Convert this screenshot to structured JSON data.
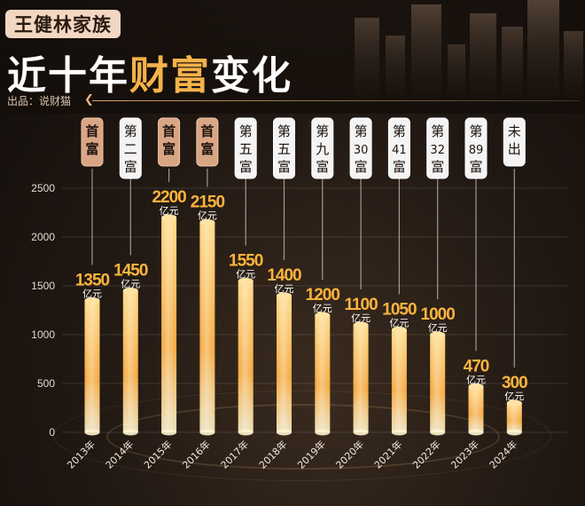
{
  "header": {
    "subtitle": "王健林家族",
    "title_part1": "近十年",
    "title_part2": "财富",
    "title_part3": "变化",
    "source": "出品：说财猫"
  },
  "colors": {
    "bar_top": "#ffd27a",
    "bar_bottom": "#e8870f",
    "value_label": "#ffb43d",
    "rank_highlight": "#d9a585",
    "rank_normal": "#f4f4f4",
    "accent": "#f6b24a"
  },
  "chart_data": {
    "type": "bar",
    "categories": [
      "2013年",
      "2014年",
      "2015年",
      "2016年",
      "2017年",
      "2018年",
      "2019年",
      "2020年",
      "2021年",
      "2022年",
      "2023年",
      "2024年"
    ],
    "values": [
      1350,
      1450,
      2200,
      2150,
      1550,
      1400,
      1200,
      1100,
      1050,
      1000,
      470,
      300
    ],
    "value_unit": "亿元",
    "rank_labels": [
      "首富",
      "第二富",
      "首富",
      "首富",
      "第五富",
      "第五富",
      "第九富",
      "第30富",
      "第41富",
      "第32富",
      "第89富",
      "未出"
    ],
    "rank_highlight": [
      true,
      false,
      true,
      true,
      false,
      false,
      false,
      false,
      false,
      false,
      false,
      false
    ],
    "yticks": [
      0,
      500,
      1000,
      1500,
      2000,
      2500
    ],
    "ylim": [
      0,
      2500
    ],
    "grid": true
  }
}
